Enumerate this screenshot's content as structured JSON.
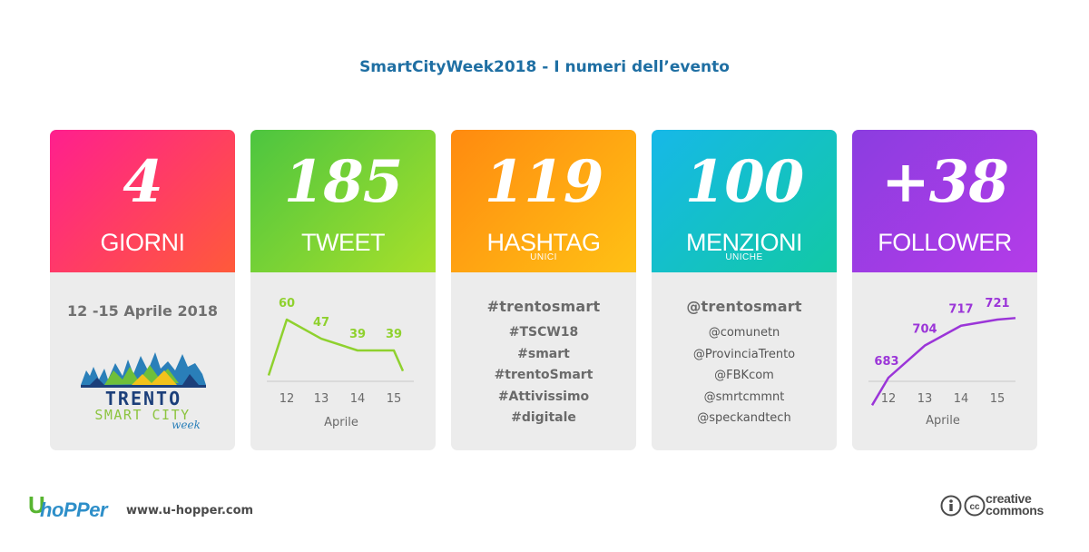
{
  "title": "SmartCityWeek2018 - I numeri dell’evento",
  "cards": {
    "giorni": {
      "number": "4",
      "label": "GIORNI",
      "dates": "12 -15 Aprile 2018",
      "logo": {
        "line1": "TRENTO",
        "line2": "SMART CITY",
        "line3": "week"
      }
    },
    "tweet": {
      "number": "185",
      "label": "TWEET"
    },
    "hashtag": {
      "number": "119",
      "label": "HASHTAG",
      "sub": "UNICI",
      "items": [
        "#trentosmart",
        "#TSCW18",
        "#smart",
        "#trentoSmart",
        "#Attivissimo",
        "#digitale"
      ]
    },
    "menzioni": {
      "number": "100",
      "label": "MENZIONI",
      "sub": "UNICHE",
      "items": [
        "@trentosmart",
        "@comunetn",
        "@ProvinciaTrento",
        "@FBKcom",
        "@smrtcmmnt",
        "@speckandtech"
      ]
    },
    "follower": {
      "number": "+38",
      "label": "FOLLOWER"
    }
  },
  "chart_data": [
    {
      "type": "line",
      "x": [
        "12",
        "13",
        "14",
        "15"
      ],
      "series": [
        {
          "values": [
            60,
            47,
            39,
            39
          ]
        }
      ],
      "xlabel": "Aprile",
      "color": "#8fd12e"
    },
    {
      "type": "line",
      "x": [
        "12",
        "13",
        "14",
        "15"
      ],
      "series": [
        {
          "values": [
            683,
            704,
            717,
            721
          ]
        }
      ],
      "xlabel": "Aprile",
      "color": "#9b35d8"
    }
  ],
  "footer": {
    "logo_u": "U",
    "logo_text": "hoPPer",
    "site": "www.u-hopper.com",
    "cc_line1": "creative",
    "cc_line2": "commons"
  },
  "icons": {
    "info": "info-icon",
    "cc": "cc-icon"
  }
}
